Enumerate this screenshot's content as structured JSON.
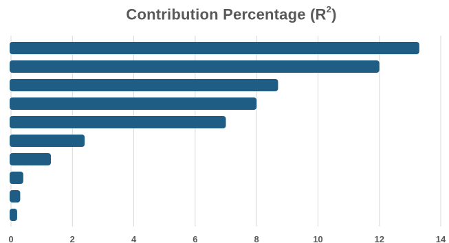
{
  "chart_data": {
    "type": "bar",
    "orientation": "horizontal",
    "title_main": "Contribution Percentage (R",
    "title_sup": "2",
    "title_end": ")",
    "values": [
      13.3,
      12.0,
      8.7,
      8.0,
      7.0,
      2.4,
      1.3,
      0.4,
      0.3,
      0.2
    ],
    "xlim": [
      0,
      14
    ],
    "xticks": [
      "0",
      "2",
      "4",
      "6",
      "8",
      "10",
      "12",
      "14"
    ],
    "grid": "vertical",
    "bar_color": "#1f5d84",
    "grid_color": "#d9d9d9"
  }
}
